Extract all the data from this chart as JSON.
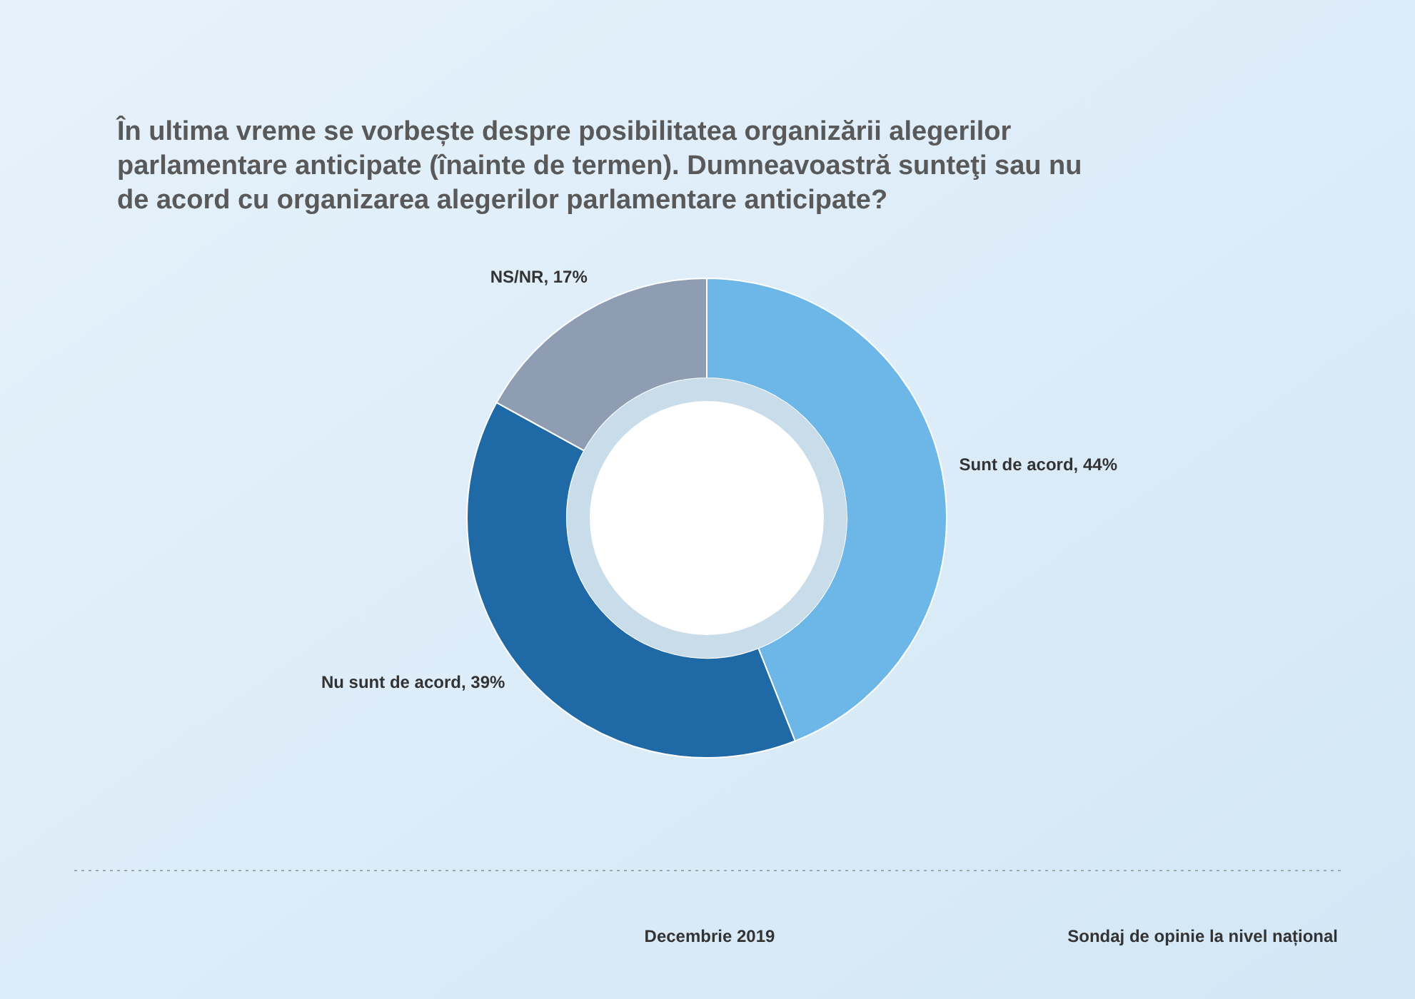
{
  "chart_data": {
    "type": "donut",
    "title": "În ultima vreme se vorbește despre posibilitatea organizării alegerilor parlamentare anticipate (înainte de termen). Dumneavoastră sunteţi sau nu de acord cu organizarea alegerilor parlamentare anticipate?",
    "categories": [
      "Sunt de acord",
      "Nu sunt de acord",
      "NS/NR"
    ],
    "values": [
      44,
      39,
      17
    ],
    "colors": [
      "#6cb6e8",
      "#1f6aa6",
      "#8e9db2"
    ],
    "value_labels": [
      "44%",
      "39%",
      "17%"
    ],
    "annotations": [
      "Decembrie 2019",
      "Sondaj de opinie la nivel național"
    ]
  }
}
